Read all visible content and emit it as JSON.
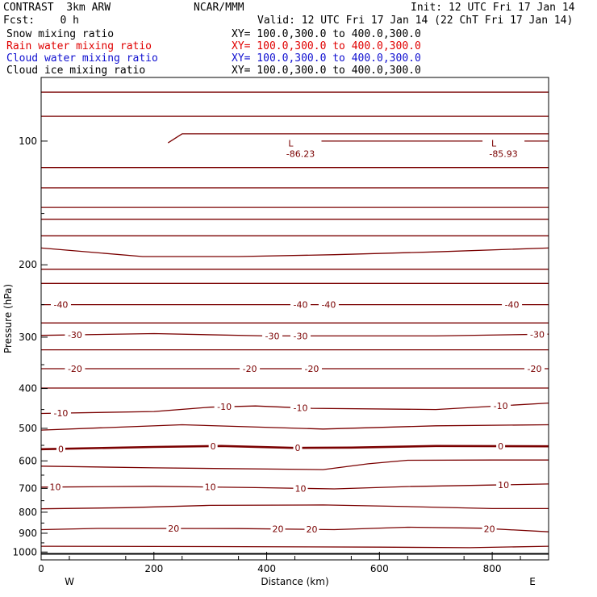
{
  "header": {
    "title": "CONTRAST  3km ARW",
    "center": "NCAR/MMM",
    "init": "Init: 12 UTC Fri 17 Jan 14",
    "fcst": "Fcst:    0 h",
    "valid": "Valid: 12 UTC Fri 17 Jan 14 (22 ChT Fri 17 Jan 14)"
  },
  "fields": [
    {
      "name": "Snow mixing ratio",
      "xy": "XY= 100.0,300.0 to 400.0,300.0",
      "color": "#000000"
    },
    {
      "name": "Rain water mixing ratio",
      "xy": "XY= 100.0,300.0 to 400.0,300.0",
      "color": "#e00000"
    },
    {
      "name": "Cloud water mixing ratio",
      "xy": "XY= 100.0,300.0 to 400.0,300.0",
      "color": "#1010d0"
    },
    {
      "name": "Cloud ice mixing ratio",
      "xy": "XY= 100.0,300.0 to 400.0,300.0",
      "color": "#000000"
    }
  ],
  "chart_data": {
    "type": "contour",
    "xlabel": "Distance (km)",
    "ylabel": "Pressure (hPa)",
    "xlim": [
      0,
      900
    ],
    "ylim_pressure": [
      70,
      1045
    ],
    "y_scale": "log",
    "x_ticks": [
      "0",
      "200",
      "400",
      "600",
      "800"
    ],
    "y_ticks": [
      "100",
      "200",
      "300",
      "400",
      "500",
      "600",
      "700",
      "800",
      "900",
      "1000"
    ],
    "x_end_labels": {
      "left": "W",
      "right": "E"
    },
    "contour_color": "#7a0000",
    "minima": [
      {
        "mark": "L",
        "value": "-86.23",
        "x": 460,
        "p": 105
      },
      {
        "mark": "L",
        "value": "-85.93",
        "x": 820,
        "p": 105
      }
    ],
    "contours": [
      {
        "pts": [
          [
            0,
            76
          ],
          [
            900,
            76
          ]
        ]
      },
      {
        "pts": [
          [
            0,
            87
          ],
          [
            900,
            87
          ]
        ]
      },
      {
        "pts": [
          [
            225,
            101
          ],
          [
            250,
            96
          ],
          [
            350,
            96
          ],
          [
            500,
            96
          ],
          [
            700,
            96
          ],
          [
            900,
            96
          ]
        ]
      },
      {
        "pts": [
          [
            450,
            100
          ],
          [
            900,
            100
          ]
        ]
      },
      {
        "pts": [
          [
            0,
            116
          ],
          [
            900,
            116
          ]
        ]
      },
      {
        "pts": [
          [
            0,
            130
          ],
          [
            900,
            130
          ]
        ]
      },
      {
        "pts": [
          [
            0,
            145
          ],
          [
            900,
            145
          ]
        ]
      },
      {
        "pts": [
          [
            0,
            155
          ],
          [
            900,
            155
          ]
        ]
      },
      {
        "pts": [
          [
            0,
            170
          ],
          [
            900,
            170
          ]
        ]
      },
      {
        "pts": [
          [
            0,
            182
          ],
          [
            180,
            191
          ],
          [
            350,
            191
          ],
          [
            520,
            189
          ],
          [
            700,
            186
          ],
          [
            900,
            182
          ]
        ]
      },
      {
        "pts": [
          [
            0,
            205
          ],
          [
            900,
            205
          ]
        ]
      },
      {
        "pts": [
          [
            0,
            222
          ],
          [
            900,
            222
          ]
        ]
      },
      {
        "label": "-40",
        "labels_at": [
          35,
          460,
          510,
          835
        ],
        "pts": [
          [
            0,
            250
          ],
          [
            900,
            250
          ]
        ]
      },
      {
        "pts": [
          [
            0,
            277
          ],
          [
            900,
            277
          ]
        ]
      },
      {
        "label": "-30",
        "labels_at": [
          60,
          410,
          460,
          880
        ],
        "pts": [
          [
            0,
            297
          ],
          [
            200,
            294
          ],
          [
            400,
            298
          ],
          [
            700,
            298
          ],
          [
            900,
            295
          ]
        ]
      },
      {
        "pts": [
          [
            0,
            322
          ],
          [
            900,
            322
          ]
        ]
      },
      {
        "label": "-20",
        "labels_at": [
          60,
          370,
          480,
          875
        ],
        "pts": [
          [
            0,
            358
          ],
          [
            900,
            358
          ]
        ]
      },
      {
        "pts": [
          [
            0,
            399
          ],
          [
            900,
            399
          ]
        ]
      },
      {
        "label": "-10",
        "labels_at": [
          35,
          325,
          460,
          815
        ],
        "pts": [
          [
            0,
            460
          ],
          [
            200,
            455
          ],
          [
            300,
            444
          ],
          [
            380,
            441
          ],
          [
            480,
            447
          ],
          [
            700,
            450
          ],
          [
            900,
            434
          ]
        ]
      },
      {
        "pts": [
          [
            0,
            505
          ],
          [
            250,
            490
          ],
          [
            500,
            502
          ],
          [
            700,
            493
          ],
          [
            900,
            490
          ]
        ]
      },
      {
        "label": "0",
        "bold": true,
        "labels_at": [
          35,
          305,
          455,
          815
        ],
        "pts": [
          [
            0,
            562
          ],
          [
            200,
            555
          ],
          [
            320,
            552
          ],
          [
            450,
            558
          ],
          [
            550,
            557
          ],
          [
            700,
            552
          ],
          [
            900,
            553
          ]
        ]
      },
      {
        "pts": [
          [
            0,
            618
          ],
          [
            200,
            624
          ],
          [
            500,
            630
          ],
          [
            580,
            610
          ],
          [
            650,
            598
          ],
          [
            800,
            597
          ],
          [
            900,
            597
          ]
        ]
      },
      {
        "label": "10",
        "labels_at": [
          25,
          300,
          460,
          820
        ],
        "pts": [
          [
            0,
            695
          ],
          [
            200,
            692
          ],
          [
            380,
            697
          ],
          [
            520,
            702
          ],
          [
            650,
            693
          ],
          [
            800,
            687
          ],
          [
            900,
            683
          ]
        ]
      },
      {
        "pts": [
          [
            0,
            785
          ],
          [
            150,
            780
          ],
          [
            300,
            770
          ],
          [
            500,
            768
          ],
          [
            650,
            775
          ],
          [
            800,
            784
          ],
          [
            900,
            784
          ]
        ]
      },
      {
        "label": "20",
        "labels_at": [
          235,
          420,
          480,
          795
        ],
        "pts": [
          [
            0,
            882
          ],
          [
            100,
            876
          ],
          [
            350,
            877
          ],
          [
            520,
            882
          ],
          [
            650,
            870
          ],
          [
            780,
            875
          ],
          [
            900,
            893
          ]
        ]
      },
      {
        "pts": [
          [
            0,
            968
          ],
          [
            300,
            970
          ],
          [
            600,
            973
          ],
          [
            760,
            976
          ],
          [
            900,
            968
          ]
        ]
      }
    ]
  }
}
